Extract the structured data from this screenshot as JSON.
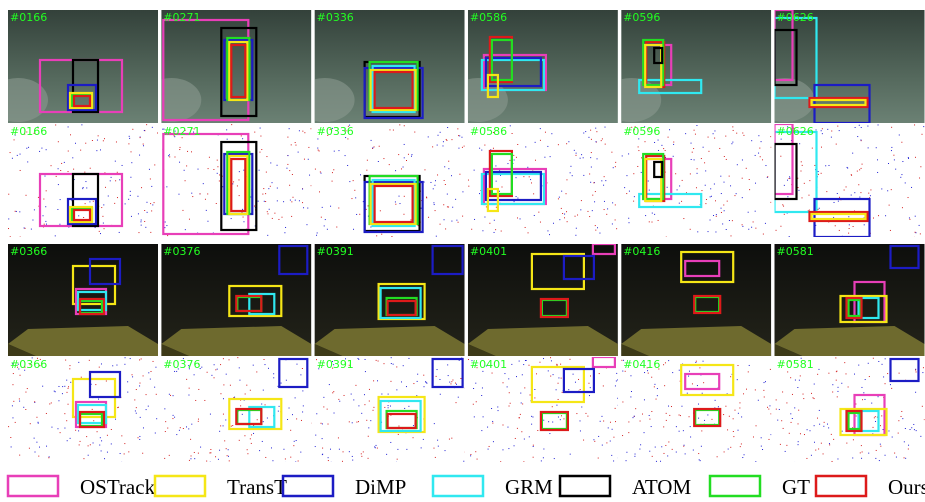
{
  "figure": {
    "panels": [
      [
        "#0166",
        "#0271",
        "#0336",
        "#0586",
        "#0596",
        "#0626"
      ],
      [
        "#0166",
        "#0271",
        "#0336",
        "#0586",
        "#0596",
        "#0626"
      ],
      [
        "#0366",
        "#0376",
        "#0391",
        "#0401",
        "#0416",
        "#0581"
      ],
      [
        "#0366",
        "#0376",
        "#0391",
        "#0401",
        "#0416",
        "#0581"
      ]
    ],
    "legend": [
      {
        "name": "OSTrack",
        "color": "#e83fb8"
      },
      {
        "name": "TransT",
        "color": "#f5e616"
      },
      {
        "name": "DiMP",
        "color": "#1c1cc4"
      },
      {
        "name": "GRM",
        "color": "#30e8f0"
      },
      {
        "name": "ATOM",
        "color": "#000000"
      },
      {
        "name": "GT",
        "color": "#22dd22"
      },
      {
        "name": "Ours",
        "color": "#dd1a1a"
      }
    ]
  }
}
